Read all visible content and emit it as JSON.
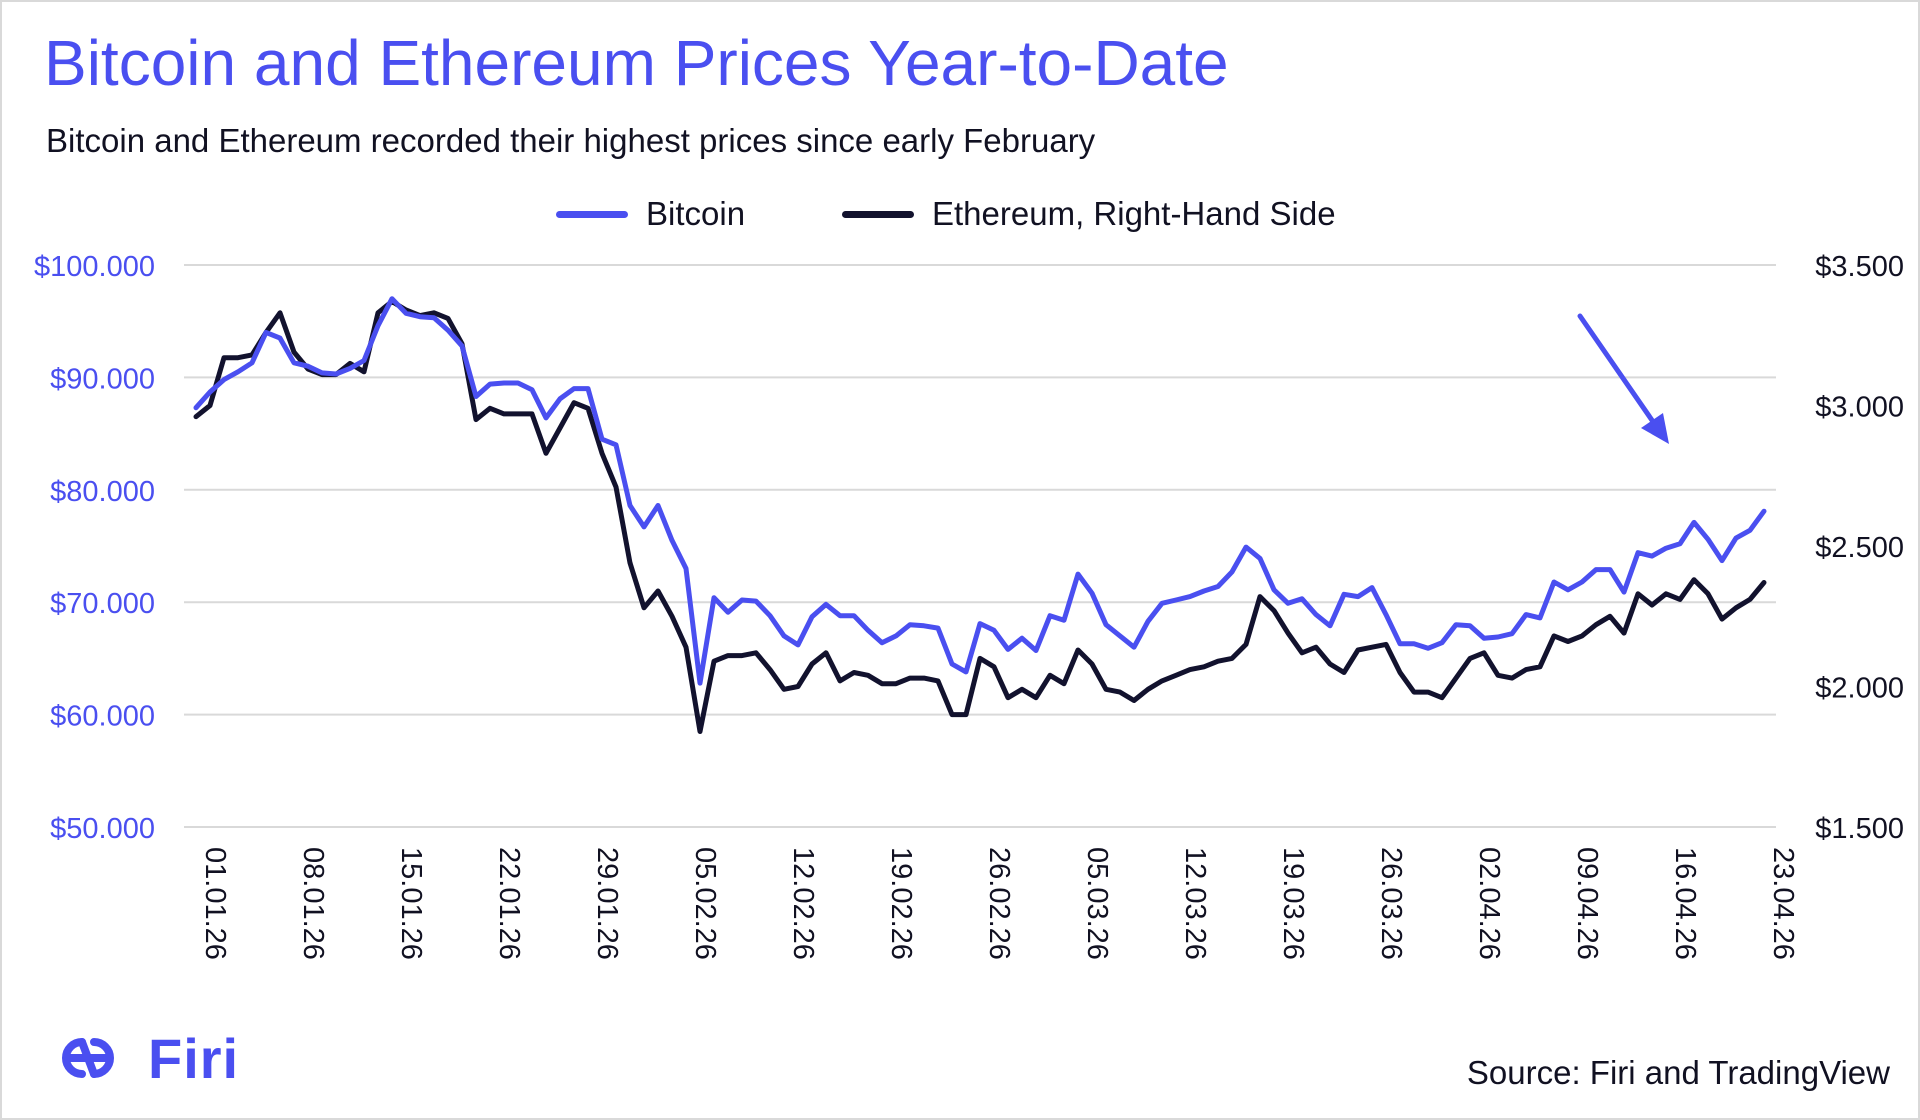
{
  "title": "Bitcoin and Ethereum Prices Year-to-Date",
  "subtitle": "Bitcoin and Ethereum recorded their highest prices since early February",
  "source": "Source: Firi and TradingView",
  "logo_text": "Firi",
  "colors": {
    "bitcoin": "#4a4ff0",
    "ethereum": "#12122e",
    "grid": "#d9d9d9"
  },
  "chart_data": {
    "type": "line",
    "x": [
      "01.01.26",
      "02.01.26",
      "03.01.26",
      "04.01.26",
      "05.01.26",
      "06.01.26",
      "07.01.26",
      "08.01.26",
      "09.01.26",
      "10.01.26",
      "11.01.26",
      "12.01.26",
      "13.01.26",
      "14.01.26",
      "15.01.26",
      "16.01.26",
      "17.01.26",
      "18.01.26",
      "19.01.26",
      "20.01.26",
      "21.01.26",
      "22.01.26",
      "23.01.26",
      "24.01.26",
      "25.01.26",
      "26.01.26",
      "27.01.26",
      "28.01.26",
      "29.01.26",
      "30.01.26",
      "31.01.26",
      "01.02.26",
      "02.02.26",
      "03.02.26",
      "04.02.26",
      "05.02.26",
      "06.02.26",
      "07.02.26",
      "08.02.26",
      "09.02.26",
      "10.02.26",
      "11.02.26",
      "12.02.26",
      "13.02.26",
      "14.02.26",
      "15.02.26",
      "16.02.26",
      "17.02.26",
      "18.02.26",
      "19.02.26",
      "20.02.26",
      "21.02.26",
      "22.02.26",
      "23.02.26",
      "24.02.26",
      "25.02.26",
      "26.02.26",
      "27.02.26",
      "28.02.26",
      "01.03.26",
      "02.03.26",
      "03.03.26",
      "04.03.26",
      "05.03.26",
      "06.03.26",
      "07.03.26",
      "08.03.26",
      "09.03.26",
      "10.03.26",
      "11.03.26",
      "12.03.26",
      "13.03.26",
      "14.03.26",
      "15.03.26",
      "16.03.26",
      "17.03.26",
      "18.03.26",
      "19.03.26",
      "20.03.26",
      "21.03.26",
      "22.03.26",
      "23.03.26",
      "24.03.26",
      "25.03.26",
      "26.03.26",
      "27.03.26",
      "28.03.26",
      "29.03.26",
      "30.03.26",
      "31.03.26",
      "01.04.26",
      "02.04.26",
      "03.04.26",
      "04.04.26",
      "05.04.26",
      "06.04.26",
      "07.04.26",
      "08.04.26",
      "09.04.26",
      "10.04.26",
      "11.04.26",
      "12.04.26",
      "13.04.26",
      "14.04.26",
      "15.04.26",
      "16.04.26",
      "17.04.26",
      "18.04.26",
      "19.04.26",
      "20.04.26",
      "21.04.26",
      "22.04.26",
      "23.04.26"
    ],
    "x_tick_labels": [
      "01.01.26",
      "08.01.26",
      "15.01.26",
      "22.01.26",
      "29.01.26",
      "05.02.26",
      "12.02.26",
      "19.02.26",
      "26.02.26",
      "05.03.26",
      "12.03.26",
      "19.03.26",
      "26.03.26",
      "02.04.26",
      "09.04.26",
      "16.04.26",
      "23.04.26"
    ],
    "y_left": {
      "ticks": [
        "$50.000",
        "$60.000",
        "$70.000",
        "$80.000",
        "$90.000",
        "$100.000"
      ],
      "ylim": [
        50000,
        100000
      ]
    },
    "y_right": {
      "ticks": [
        "$1.500",
        "$2.000",
        "$2.500",
        "$3.000",
        "$3.500"
      ],
      "ylim": [
        1500,
        3500
      ]
    },
    "grid": true,
    "legend_position": "top-center",
    "series": [
      {
        "name": "Bitcoin",
        "axis": "left",
        "values": [
          87300,
          88700,
          89800,
          90500,
          91300,
          94000,
          93500,
          91300,
          91000,
          90400,
          90300,
          90800,
          91500,
          94600,
          97000,
          95700,
          95400,
          95300,
          94200,
          92800,
          88300,
          89400,
          89500,
          89500,
          88900,
          86400,
          88100,
          89000,
          89000,
          84500,
          84000,
          78600,
          76700,
          78600,
          75500,
          73000,
          62800,
          70400,
          69100,
          70200,
          70100,
          68800,
          67000,
          66200,
          68700,
          69800,
          68800,
          68800,
          67500,
          66400,
          67000,
          68000,
          67900,
          67700,
          64500,
          63800,
          68100,
          67500,
          65800,
          66800,
          65700,
          68800,
          68400,
          72500,
          70800,
          68000,
          67000,
          66000,
          68300,
          69900,
          70200,
          70500,
          71000,
          71400,
          72700,
          74900,
          73900,
          71100,
          69900,
          70300,
          68900,
          67900,
          70700,
          70500,
          71300,
          68900,
          66300,
          66300,
          65900,
          66400,
          68000,
          67900,
          66800,
          66900,
          67200,
          68900,
          68600,
          71800,
          71100,
          71800,
          72900,
          72900,
          70900,
          74400,
          74100,
          74800,
          75200,
          77100,
          75600,
          73700,
          75700,
          76400,
          78100
        ]
      },
      {
        "name": "Ethereum, Right-Hand Side",
        "axis": "right",
        "values": [
          2960,
          3000,
          3170,
          3170,
          3180,
          3260,
          3330,
          3190,
          3130,
          3110,
          3110,
          3150,
          3120,
          3330,
          3370,
          3340,
          3320,
          3330,
          3310,
          3220,
          2950,
          2990,
          2970,
          2970,
          2970,
          2830,
          2920,
          3010,
          2990,
          2830,
          2710,
          2440,
          2280,
          2340,
          2250,
          2140,
          1840,
          2090,
          2110,
          2110,
          2120,
          2060,
          1990,
          2000,
          2080,
          2120,
          2020,
          2050,
          2040,
          2010,
          2010,
          2030,
          2030,
          2020,
          1900,
          1900,
          2100,
          2070,
          1960,
          1990,
          1960,
          2040,
          2010,
          2130,
          2080,
          1990,
          1980,
          1950,
          1990,
          2020,
          2040,
          2060,
          2070,
          2090,
          2100,
          2150,
          2320,
          2270,
          2190,
          2120,
          2140,
          2080,
          2050,
          2130,
          2140,
          2150,
          2050,
          1980,
          1980,
          1960,
          2030,
          2100,
          2120,
          2040,
          2030,
          2060,
          2070,
          2180,
          2160,
          2180,
          2220,
          2250,
          2190,
          2330,
          2290,
          2330,
          2310,
          2380,
          2330,
          2240,
          2280,
          2310,
          2370
        ]
      }
    ]
  }
}
